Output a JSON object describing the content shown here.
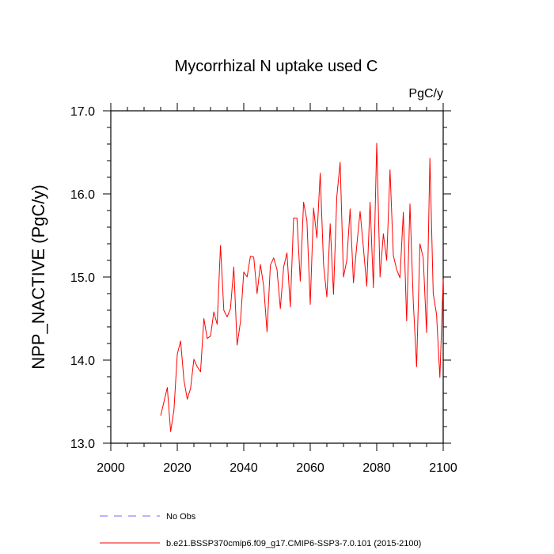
{
  "chart_data": {
    "type": "line",
    "title": "Mycorrhizal N uptake used C",
    "units_label": "PgC/y",
    "ylabel": "NPP_NACTIVE  (PgC/y)",
    "xlabel": "",
    "xlim": [
      2000,
      2100
    ],
    "ylim": [
      13.0,
      17.0
    ],
    "x_ticks": [
      2000,
      2020,
      2040,
      2060,
      2080,
      2100
    ],
    "x_tick_labels": [
      "2000",
      "2020",
      "2040",
      "2060",
      "2080",
      "2100"
    ],
    "y_ticks": [
      13.0,
      14.0,
      15.0,
      16.0,
      17.0
    ],
    "y_tick_labels": [
      "13.0",
      "14.0",
      "15.0",
      "16.0",
      "17.0"
    ],
    "grid": false,
    "legend_position": "bottom",
    "legend": [
      {
        "label": "No Obs",
        "color": "#6b6bff",
        "style": "dashed"
      },
      {
        "label": "b.e21.BSSP370cmip6.f09_g17.CMIP6-SSP3-7.0.101 (2015-2100)",
        "color": "#ff0000",
        "style": "solid"
      }
    ],
    "series": [
      {
        "name": "b.e21.BSSP370cmip6.f09_g17.CMIP6-SSP3-7.0.101 (2015-2100)",
        "color": "#ff0000",
        "x": [
          2015,
          2016,
          2017,
          2018,
          2019,
          2020,
          2021,
          2022,
          2023,
          2024,
          2025,
          2026,
          2027,
          2028,
          2029,
          2030,
          2031,
          2032,
          2033,
          2034,
          2035,
          2036,
          2037,
          2038,
          2039,
          2040,
          2041,
          2042,
          2043,
          2044,
          2045,
          2046,
          2047,
          2048,
          2049,
          2050,
          2051,
          2052,
          2053,
          2054,
          2055,
          2056,
          2057,
          2058,
          2059,
          2060,
          2061,
          2062,
          2063,
          2064,
          2065,
          2066,
          2067,
          2068,
          2069,
          2070,
          2071,
          2072,
          2073,
          2074,
          2075,
          2076,
          2077,
          2078,
          2079,
          2080,
          2081,
          2082,
          2083,
          2084,
          2085,
          2086,
          2087,
          2088,
          2089,
          2090,
          2091,
          2092,
          2093,
          2094,
          2095,
          2096,
          2097,
          2098,
          2099,
          2100
        ],
        "y": [
          13.33,
          13.5,
          13.67,
          13.14,
          13.4,
          14.07,
          14.23,
          13.76,
          13.53,
          13.66,
          14.01,
          13.92,
          13.86,
          14.5,
          14.26,
          14.29,
          14.58,
          14.43,
          15.38,
          14.6,
          14.52,
          14.62,
          15.12,
          14.18,
          14.46,
          15.06,
          15.0,
          15.25,
          15.24,
          14.8,
          15.15,
          14.89,
          14.34,
          15.14,
          15.23,
          15.09,
          14.62,
          15.12,
          15.29,
          14.64,
          15.71,
          15.71,
          14.95,
          15.9,
          15.68,
          14.67,
          15.83,
          15.47,
          16.25,
          15.15,
          14.76,
          15.64,
          14.79,
          15.97,
          16.38,
          15.0,
          15.2,
          15.82,
          14.93,
          15.38,
          15.79,
          15.35,
          14.89,
          15.9,
          14.87,
          16.61,
          15.0,
          15.52,
          15.2,
          16.29,
          15.26,
          15.09,
          14.99,
          15.78,
          14.47,
          15.88,
          14.7,
          13.92,
          15.4,
          15.23,
          14.33,
          16.43,
          14.8,
          14.55,
          13.79,
          14.97
        ]
      }
    ]
  }
}
